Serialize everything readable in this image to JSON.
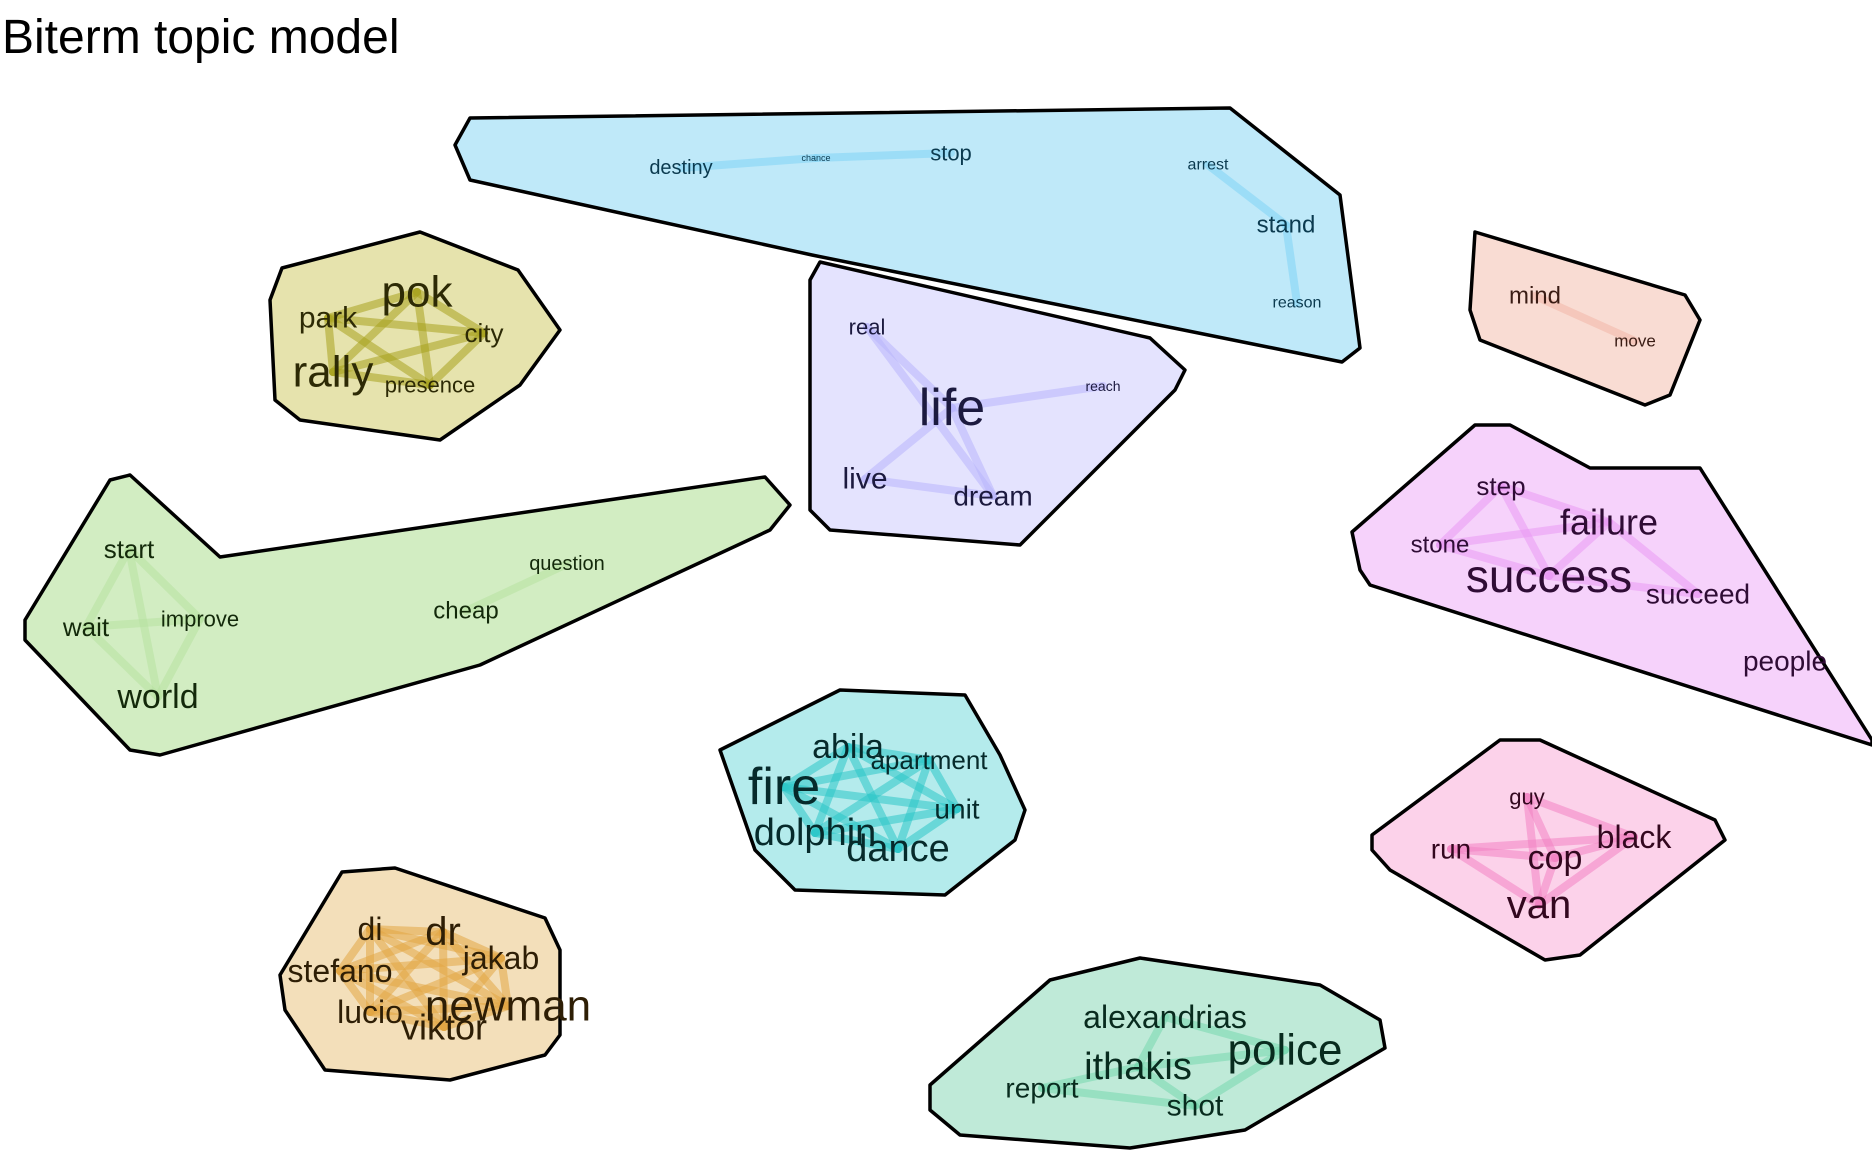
{
  "title": "Biterm topic model",
  "topics": [
    {
      "name": "topic-blue",
      "fill": "#bfe9f9",
      "edge_color": "#7fd3f5",
      "text_color": "#0b3a4f",
      "words": [
        {
          "text": "destiny",
          "size": 1.0
        },
        {
          "text": "chance",
          "size": 0.45
        },
        {
          "text": "stop",
          "size": 1.1
        },
        {
          "text": "arrest",
          "size": 0.8
        },
        {
          "text": "stand",
          "size": 1.2
        },
        {
          "text": "reason",
          "size": 0.8
        }
      ],
      "links": [
        [
          0,
          1
        ],
        [
          1,
          2
        ],
        [
          3,
          4
        ],
        [
          4,
          5
        ]
      ]
    },
    {
      "name": "topic-olive",
      "fill": "#e6e3ad",
      "edge_color": "#a8a21e",
      "text_color": "#2d2a05",
      "words": [
        {
          "text": "park",
          "size": 1.5
        },
        {
          "text": "pok",
          "size": 2.2
        },
        {
          "text": "city",
          "size": 1.3
        },
        {
          "text": "rally",
          "size": 2.2
        },
        {
          "text": "presence",
          "size": 1.1
        }
      ],
      "links": [
        [
          0,
          1
        ],
        [
          0,
          2
        ],
        [
          0,
          3
        ],
        [
          0,
          4
        ],
        [
          1,
          2
        ],
        [
          1,
          3
        ],
        [
          1,
          4
        ],
        [
          2,
          3
        ],
        [
          2,
          4
        ],
        [
          3,
          4
        ]
      ]
    },
    {
      "name": "topic-lavender",
      "fill": "#e4e3fe",
      "edge_color": "#b8b4fb",
      "text_color": "#1c1a3f",
      "words": [
        {
          "text": "real",
          "size": 1.1
        },
        {
          "text": "life",
          "size": 2.6
        },
        {
          "text": "reach",
          "size": 0.7
        },
        {
          "text": "live",
          "size": 1.5
        },
        {
          "text": "dream",
          "size": 1.4
        }
      ],
      "links": [
        [
          0,
          1
        ],
        [
          1,
          2
        ],
        [
          1,
          3
        ],
        [
          1,
          4
        ],
        [
          3,
          4
        ],
        [
          0,
          4
        ]
      ]
    },
    {
      "name": "topic-salmon",
      "fill": "#f9dcd3",
      "edge_color": "#f3b7a7",
      "text_color": "#3a1c14",
      "words": [
        {
          "text": "mind",
          "size": 1.2
        },
        {
          "text": "move",
          "size": 0.85
        }
      ],
      "links": [
        [
          0,
          1
        ]
      ]
    },
    {
      "name": "topic-green",
      "fill": "#d2edc2",
      "edge_color": "#b7e2a0",
      "text_color": "#13290a",
      "words": [
        {
          "text": "start",
          "size": 1.3
        },
        {
          "text": "wait",
          "size": 1.3
        },
        {
          "text": "improve",
          "size": 1.1
        },
        {
          "text": "world",
          "size": 1.7
        },
        {
          "text": "question",
          "size": 1.0
        },
        {
          "text": "cheap",
          "size": 1.2
        }
      ],
      "links": [
        [
          0,
          1
        ],
        [
          0,
          2
        ],
        [
          1,
          2
        ],
        [
          1,
          3
        ],
        [
          2,
          3
        ],
        [
          0,
          3
        ],
        [
          4,
          5
        ]
      ]
    },
    {
      "name": "topic-pink",
      "fill": "#f6d2fb",
      "edge_color": "#ea99f4",
      "text_color": "#2f0c35",
      "words": [
        {
          "text": "step",
          "size": 1.3
        },
        {
          "text": "failure",
          "size": 1.8
        },
        {
          "text": "stone",
          "size": 1.2
        },
        {
          "text": "success",
          "size": 2.3
        },
        {
          "text": "succeed",
          "size": 1.4
        },
        {
          "text": "people",
          "size": 1.4
        }
      ],
      "links": [
        [
          0,
          1
        ],
        [
          0,
          2
        ],
        [
          0,
          3
        ],
        [
          1,
          2
        ],
        [
          1,
          3
        ],
        [
          2,
          3
        ],
        [
          1,
          4
        ],
        [
          3,
          4
        ]
      ]
    },
    {
      "name": "topic-cyan",
      "fill": "#b4ebec",
      "edge_color": "#2cc7c9",
      "text_color": "#062a2b",
      "words": [
        {
          "text": "abila",
          "size": 1.7
        },
        {
          "text": "fire",
          "size": 2.6
        },
        {
          "text": "apartment",
          "size": 1.3
        },
        {
          "text": "unit",
          "size": 1.4
        },
        {
          "text": "dolphin",
          "size": 1.9
        },
        {
          "text": "dance",
          "size": 1.9
        }
      ],
      "links": [
        [
          0,
          1
        ],
        [
          0,
          2
        ],
        [
          0,
          3
        ],
        [
          0,
          4
        ],
        [
          0,
          5
        ],
        [
          1,
          2
        ],
        [
          1,
          3
        ],
        [
          1,
          4
        ],
        [
          1,
          5
        ],
        [
          2,
          3
        ],
        [
          2,
          4
        ],
        [
          2,
          5
        ],
        [
          3,
          4
        ],
        [
          3,
          5
        ],
        [
          4,
          5
        ]
      ]
    },
    {
      "name": "topic-orange",
      "fill": "#f3dfba",
      "edge_color": "#e2a644",
      "text_color": "#2e1e05",
      "words": [
        {
          "text": "di",
          "size": 1.6
        },
        {
          "text": "dr",
          "size": 2.0
        },
        {
          "text": "stefano",
          "size": 1.6
        },
        {
          "text": "jakab",
          "size": 1.6
        },
        {
          "text": "lucio",
          "size": 1.6
        },
        {
          "text": "newman",
          "size": 2.2
        },
        {
          "text": "viktor",
          "size": 1.8
        }
      ],
      "links": [
        [
          0,
          1
        ],
        [
          0,
          2
        ],
        [
          0,
          3
        ],
        [
          0,
          4
        ],
        [
          0,
          5
        ],
        [
          0,
          6
        ],
        [
          1,
          2
        ],
        [
          1,
          3
        ],
        [
          1,
          4
        ],
        [
          1,
          5
        ],
        [
          1,
          6
        ],
        [
          2,
          3
        ],
        [
          2,
          4
        ],
        [
          2,
          5
        ],
        [
          2,
          6
        ],
        [
          3,
          4
        ],
        [
          3,
          5
        ],
        [
          3,
          6
        ],
        [
          4,
          5
        ],
        [
          4,
          6
        ],
        [
          5,
          6
        ]
      ]
    },
    {
      "name": "topic-rose",
      "fill": "#fcd2ea",
      "edge_color": "#f381c3",
      "text_color": "#33081f",
      "words": [
        {
          "text": "guy",
          "size": 1.1
        },
        {
          "text": "black",
          "size": 1.6
        },
        {
          "text": "run",
          "size": 1.4
        },
        {
          "text": "cop",
          "size": 1.7
        },
        {
          "text": "van",
          "size": 2.0
        }
      ],
      "links": [
        [
          0,
          3
        ],
        [
          0,
          4
        ],
        [
          1,
          3
        ],
        [
          1,
          4
        ],
        [
          2,
          3
        ],
        [
          2,
          4
        ],
        [
          3,
          4
        ],
        [
          0,
          1
        ],
        [
          2,
          1
        ]
      ]
    },
    {
      "name": "topic-mint",
      "fill": "#bfead8",
      "edge_color": "#76d7af",
      "text_color": "#082b1e",
      "words": [
        {
          "text": "alexandrias",
          "size": 1.6
        },
        {
          "text": "ithakis",
          "size": 1.9
        },
        {
          "text": "police",
          "size": 2.2
        },
        {
          "text": "report",
          "size": 1.4
        },
        {
          "text": "shot",
          "size": 1.5
        }
      ],
      "links": [
        [
          0,
          1
        ],
        [
          0,
          2
        ],
        [
          1,
          2
        ],
        [
          1,
          3
        ],
        [
          1,
          4
        ],
        [
          2,
          4
        ],
        [
          3,
          4
        ]
      ]
    }
  ]
}
